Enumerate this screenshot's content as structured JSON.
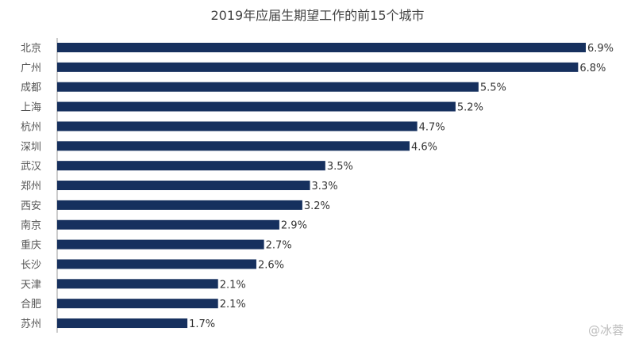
{
  "chart_data": {
    "type": "bar",
    "orientation": "horizontal",
    "title": "2019年应届生期望工作的前15个城市",
    "categories": [
      "北京",
      "广州",
      "成都",
      "上海",
      "杭州",
      "深圳",
      "武汉",
      "郑州",
      "西安",
      "南京",
      "重庆",
      "长沙",
      "天津",
      "合肥",
      "苏州"
    ],
    "values": [
      6.9,
      6.8,
      5.5,
      5.2,
      4.7,
      4.6,
      3.5,
      3.3,
      3.2,
      2.9,
      2.7,
      2.6,
      2.1,
      2.1,
      1.7
    ],
    "value_labels": [
      "6.9%",
      "6.8%",
      "5.5%",
      "5.2%",
      "4.7%",
      "4.6%",
      "3.5%",
      "3.3%",
      "3.2%",
      "2.9%",
      "2.7%",
      "2.6%",
      "2.1%",
      "2.1%",
      "1.7%"
    ],
    "xlim": [
      0,
      6.9
    ],
    "bar_color": "#16305e",
    "axis_color": "#999999",
    "grid": false,
    "legend": "none"
  },
  "watermark": "@冰蓉"
}
